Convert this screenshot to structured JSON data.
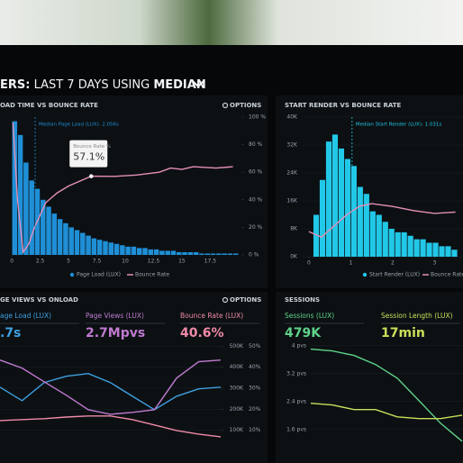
{
  "header": [
    "ERS:",
    "LAST 7 DAYS",
    "USING",
    "MEDIAN"
  ],
  "chart_data": [
    {
      "type": "histogram",
      "title": "OAD TIME VS BOUNCE RATE",
      "options": "OPTIONS",
      "name": "Page Load (LUX)",
      "color": "#1f8fd6",
      "bins": [
        0,
        0.5,
        1,
        1.5,
        2,
        2.5,
        3,
        3.5,
        4,
        4.5,
        5,
        5.5,
        6,
        6.5,
        7,
        7.5,
        8,
        8.5,
        9,
        9.5,
        10,
        10.5,
        11,
        11.5,
        12,
        12.5,
        13,
        13.5,
        14,
        14.5,
        15,
        15.5,
        16,
        16.5,
        17,
        17.5,
        18,
        18.5,
        19,
        19.5,
        20
      ],
      "values": [
        97,
        87,
        67,
        54,
        48,
        40,
        35,
        30,
        26,
        23,
        20,
        18,
        16,
        14,
        12,
        11,
        10,
        9,
        8,
        7,
        6,
        6,
        5,
        5,
        4,
        4,
        3,
        3,
        3,
        2,
        2,
        2,
        2,
        1,
        1,
        1,
        1,
        1,
        1,
        1
      ],
      "xlim": [
        -0.25,
        20.25
      ],
      "xticks": [
        0,
        2.5,
        5,
        7.5,
        10,
        12.5,
        15,
        17.5
      ],
      "ylim": [
        0,
        100
      ],
      "y2lim": [
        0,
        100
      ],
      "y2ticks": [
        {
          "value": 0,
          "label": "0 %"
        },
        {
          "value": 20,
          "label": "20 %"
        },
        {
          "value": 40,
          "label": "40 %"
        },
        {
          "value": 60,
          "label": "60 %"
        },
        {
          "value": 80,
          "label": "80 %"
        },
        {
          "value": 100,
          "label": "100 %"
        }
      ],
      "lines": [
        {
          "name": "Bounce Rate",
          "color": "#e58fb8",
          "axis": "y2",
          "x": [
            0.1,
            0.5,
            1,
            1.5,
            2,
            3,
            4,
            5,
            7,
            9,
            11,
            13,
            14,
            15,
            16,
            18,
            19.5
          ],
          "values": [
            96,
            40,
            2,
            8,
            20,
            38,
            45,
            50,
            57.1,
            57,
            58,
            60,
            63,
            62,
            64,
            63,
            64
          ]
        }
      ],
      "median": {
        "text": "Median Page Load (LUX): 2.056s",
        "x": 2.056
      },
      "tooltip": {
        "title": "Bounce Rate %",
        "x": 7,
        "value": 57.1,
        "label": "57.1%"
      }
    },
    {
      "type": "histogram",
      "title": "START RENDER VS BOUNCE RATE",
      "name": "Start Render (LUX)",
      "color": "#22c8e8",
      "bins": [
        0.1,
        0.25,
        0.4,
        0.55,
        0.7,
        0.85,
        1.0,
        1.15,
        1.3,
        1.45,
        1.6,
        1.75,
        1.9,
        2.05,
        2.2,
        2.35,
        2.5,
        2.65,
        2.8,
        2.95,
        3.1,
        3.25,
        3.4,
        3.55
      ],
      "values": [
        12000,
        22000,
        33000,
        35000,
        31000,
        28000,
        26000,
        20000,
        18000,
        13000,
        12000,
        10000,
        8000,
        7000,
        7000,
        6000,
        5000,
        5000,
        4000,
        4000,
        3000,
        3000,
        2000
      ],
      "xlim": [
        -0.17,
        3.68
      ],
      "xticks": [
        0,
        1,
        2,
        3
      ],
      "ylim": [
        0,
        40000
      ],
      "yticks": [
        {
          "value": 0,
          "label": "0K"
        },
        {
          "value": 8000,
          "label": "8K"
        },
        {
          "value": 16000,
          "label": "16K"
        },
        {
          "value": 24000,
          "label": "24K"
        },
        {
          "value": 32000,
          "label": "32K"
        },
        {
          "value": 40000,
          "label": "40K"
        }
      ],
      "y2lim": [
        0,
        100
      ],
      "lines": [
        {
          "name": "Bounce Rate",
          "color": "#e58fb8",
          "axis": "y2",
          "x": [
            0,
            0.3,
            0.6,
            0.9,
            1.2,
            1.5,
            2,
            2.5,
            3,
            3.5
          ],
          "values": [
            18,
            14,
            22,
            30,
            36,
            38,
            36,
            33,
            31,
            32
          ]
        }
      ],
      "median": {
        "text": "Median Start Render (LUX): 1.031s",
        "x": 1.031
      }
    },
    {
      "type": "line",
      "title": "GE VIEWS VS ONLOAD",
      "options": "OPTIONS",
      "x": [
        0,
        1,
        2,
        3,
        4,
        5,
        6,
        7,
        8,
        9,
        10
      ],
      "xlim": [
        0,
        10
      ],
      "ylim": [
        0,
        540000
      ],
      "yticks": [
        {
          "value": 100000,
          "label": "100K"
        },
        {
          "value": 200000,
          "label": "200K"
        },
        {
          "value": 300000,
          "label": "300K"
        },
        {
          "value": 400000,
          "label": "400K"
        },
        {
          "value": 500000,
          "label": "500K"
        }
      ],
      "y2lim": [
        0,
        54
      ],
      "y2ticks": [
        {
          "value": 10,
          "label": "10%"
        },
        {
          "value": 20,
          "label": "20%"
        },
        {
          "value": 30,
          "label": "30%"
        },
        {
          "value": 40,
          "label": "40%"
        },
        {
          "value": 50,
          "label": "50%"
        }
      ],
      "series": [
        {
          "name": "age Load (LUX)",
          "stat": ".7s",
          "color": "#3fa0e0",
          "values": [
            305000,
            241000,
            327000,
            357000,
            370000,
            327000,
            262000,
            198000,
            262000,
            297000,
            305000
          ]
        },
        {
          "name": "Page Views (LUX)",
          "stat": "2.7Mpvs",
          "color": "#c07ad0",
          "values": [
            434000,
            396000,
            331000,
            267000,
            198000,
            176000,
            185000,
            198000,
            348000,
            426000,
            434000
          ]
        },
        {
          "name": "Bounce Rate (LUX)",
          "stat": "40.6%",
          "color": "#f08aa8",
          "axis": "y2",
          "values": [
            14.6,
            15.1,
            15.5,
            16.3,
            16.8,
            16.8,
            15.1,
            12.5,
            9.9,
            8.2,
            6.9
          ]
        }
      ]
    },
    {
      "type": "line",
      "title": "SESSIONS",
      "x": [
        0,
        1,
        2,
        3,
        4,
        5,
        6,
        7
      ],
      "xlim": [
        0,
        7
      ],
      "ylim": [
        1.0,
        4.2
      ],
      "yticks": [
        {
          "value": 1.6,
          "label": "1.6 pvs"
        },
        {
          "value": 2.4,
          "label": "2.4 pvs"
        },
        {
          "value": 3.2,
          "label": "3.2 pvs"
        },
        {
          "value": 4,
          "label": "4 pvs"
        }
      ],
      "series": [
        {
          "name": "Sessions (LUX)",
          "stat": "479K",
          "color": "#5fd38a",
          "values": [
            3.9,
            3.85,
            3.72,
            3.46,
            3.07,
            2.43,
            1.78,
            1.26
          ]
        },
        {
          "name": "Session Length (LUX)",
          "stat": "17min",
          "color": "#c8e05a",
          "values": [
            2.35,
            2.3,
            2.17,
            2.17,
            1.96,
            1.91,
            1.91,
            2.01
          ]
        }
      ]
    }
  ]
}
